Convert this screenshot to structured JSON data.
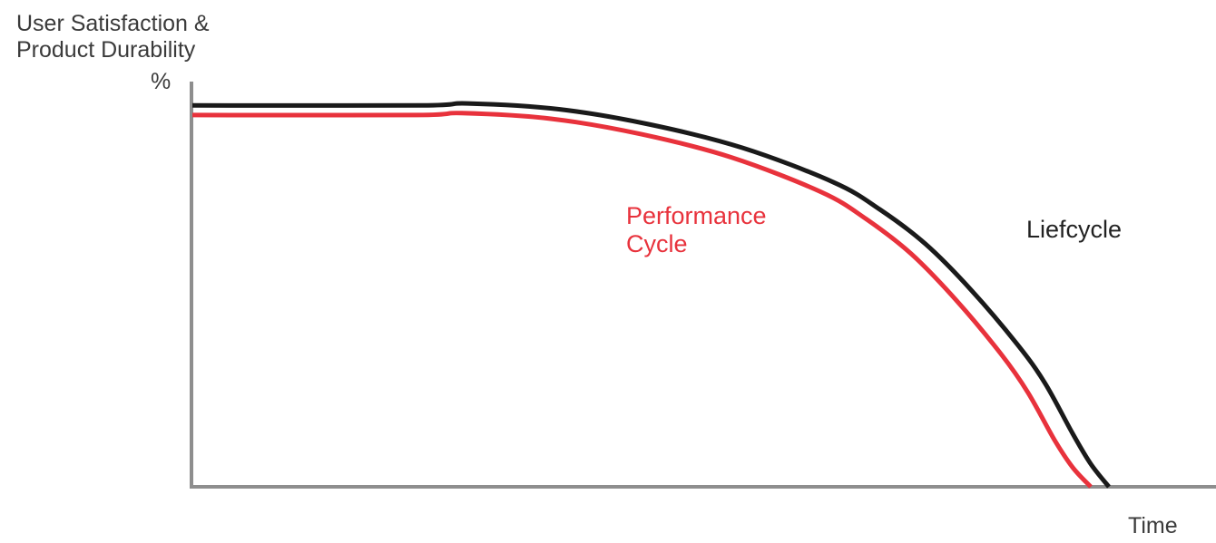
{
  "chart_data": {
    "type": "line",
    "title": "",
    "ylabel_lines": [
      "User Satisfaction &",
      "Product Durability"
    ],
    "yunit": "%",
    "xlabel": "Time",
    "xlim": [
      0,
      100
    ],
    "ylim": [
      0,
      100
    ],
    "grid": false,
    "series": [
      {
        "name": "Liefcycle",
        "color": "#1a1a1a",
        "x": [
          0,
          25,
          30,
          40,
          50,
          60,
          70,
          75,
          80,
          85,
          90,
          93,
          96,
          98,
          100
        ],
        "y": [
          99,
          99,
          99.5,
          98,
          94,
          88,
          79,
          72,
          63,
          51,
          37,
          27,
          14,
          6,
          0
        ]
      },
      {
        "name": "Performance\nCycle",
        "color": "#e8323c",
        "x": [
          0,
          25,
          30,
          40,
          50,
          60,
          70,
          75,
          80,
          85,
          90,
          93,
          96,
          98,
          100
        ],
        "y": [
          96.5,
          96.5,
          97,
          95.5,
          91.5,
          85.5,
          76.5,
          69.5,
          60.5,
          48.5,
          34.5,
          24.5,
          12,
          5,
          0
        ]
      }
    ]
  }
}
